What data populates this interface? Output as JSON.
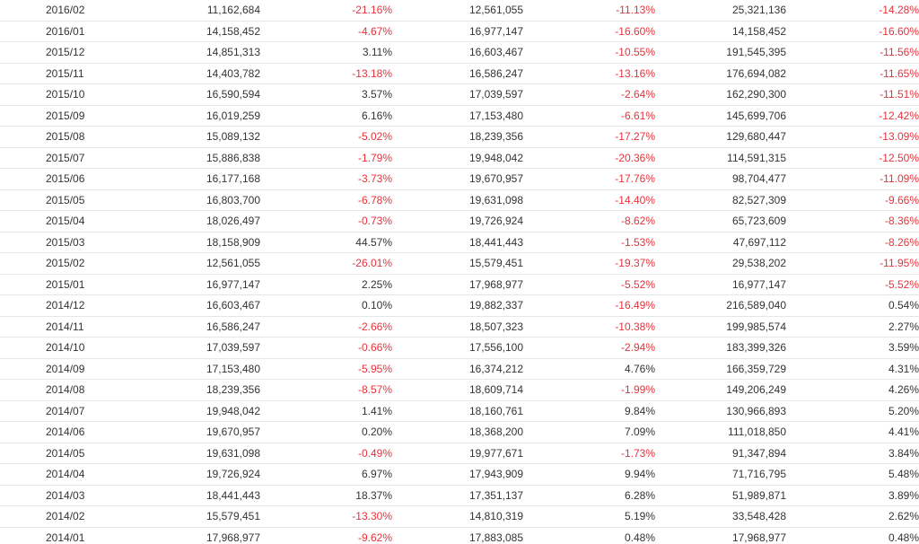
{
  "table": {
    "rows": [
      {
        "month": "2016/02",
        "v1": "11,162,684",
        "p1": "-21.16%",
        "v2": "12,561,055",
        "p2": "-11.13%",
        "v3": "25,321,136",
        "p3": "-14.28%"
      },
      {
        "month": "2016/01",
        "v1": "14,158,452",
        "p1": "-4.67%",
        "v2": "16,977,147",
        "p2": "-16.60%",
        "v3": "14,158,452",
        "p3": "-16.60%"
      },
      {
        "month": "2015/12",
        "v1": "14,851,313",
        "p1": "3.11%",
        "v2": "16,603,467",
        "p2": "-10.55%",
        "v3": "191,545,395",
        "p3": "-11.56%"
      },
      {
        "month": "2015/11",
        "v1": "14,403,782",
        "p1": "-13.18%",
        "v2": "16,586,247",
        "p2": "-13.16%",
        "v3": "176,694,082",
        "p3": "-11.65%"
      },
      {
        "month": "2015/10",
        "v1": "16,590,594",
        "p1": "3.57%",
        "v2": "17,039,597",
        "p2": "-2.64%",
        "v3": "162,290,300",
        "p3": "-11.51%"
      },
      {
        "month": "2015/09",
        "v1": "16,019,259",
        "p1": "6.16%",
        "v2": "17,153,480",
        "p2": "-6.61%",
        "v3": "145,699,706",
        "p3": "-12.42%"
      },
      {
        "month": "2015/08",
        "v1": "15,089,132",
        "p1": "-5.02%",
        "v2": "18,239,356",
        "p2": "-17.27%",
        "v3": "129,680,447",
        "p3": "-13.09%"
      },
      {
        "month": "2015/07",
        "v1": "15,886,838",
        "p1": "-1.79%",
        "v2": "19,948,042",
        "p2": "-20.36%",
        "v3": "114,591,315",
        "p3": "-12.50%"
      },
      {
        "month": "2015/06",
        "v1": "16,177,168",
        "p1": "-3.73%",
        "v2": "19,670,957",
        "p2": "-17.76%",
        "v3": "98,704,477",
        "p3": "-11.09%"
      },
      {
        "month": "2015/05",
        "v1": "16,803,700",
        "p1": "-6.78%",
        "v2": "19,631,098",
        "p2": "-14.40%",
        "v3": "82,527,309",
        "p3": "-9.66%"
      },
      {
        "month": "2015/04",
        "v1": "18,026,497",
        "p1": "-0.73%",
        "v2": "19,726,924",
        "p2": "-8.62%",
        "v3": "65,723,609",
        "p3": "-8.36%"
      },
      {
        "month": "2015/03",
        "v1": "18,158,909",
        "p1": "44.57%",
        "v2": "18,441,443",
        "p2": "-1.53%",
        "v3": "47,697,112",
        "p3": "-8.26%"
      },
      {
        "month": "2015/02",
        "v1": "12,561,055",
        "p1": "-26.01%",
        "v2": "15,579,451",
        "p2": "-19.37%",
        "v3": "29,538,202",
        "p3": "-11.95%"
      },
      {
        "month": "2015/01",
        "v1": "16,977,147",
        "p1": "2.25%",
        "v2": "17,968,977",
        "p2": "-5.52%",
        "v3": "16,977,147",
        "p3": "-5.52%"
      },
      {
        "month": "2014/12",
        "v1": "16,603,467",
        "p1": "0.10%",
        "v2": "19,882,337",
        "p2": "-16.49%",
        "v3": "216,589,040",
        "p3": "0.54%"
      },
      {
        "month": "2014/11",
        "v1": "16,586,247",
        "p1": "-2.66%",
        "v2": "18,507,323",
        "p2": "-10.38%",
        "v3": "199,985,574",
        "p3": "2.27%"
      },
      {
        "month": "2014/10",
        "v1": "17,039,597",
        "p1": "-0.66%",
        "v2": "17,556,100",
        "p2": "-2.94%",
        "v3": "183,399,326",
        "p3": "3.59%"
      },
      {
        "month": "2014/09",
        "v1": "17,153,480",
        "p1": "-5.95%",
        "v2": "16,374,212",
        "p2": "4.76%",
        "v3": "166,359,729",
        "p3": "4.31%"
      },
      {
        "month": "2014/08",
        "v1": "18,239,356",
        "p1": "-8.57%",
        "v2": "18,609,714",
        "p2": "-1.99%",
        "v3": "149,206,249",
        "p3": "4.26%"
      },
      {
        "month": "2014/07",
        "v1": "19,948,042",
        "p1": "1.41%",
        "v2": "18,160,761",
        "p2": "9.84%",
        "v3": "130,966,893",
        "p3": "5.20%"
      },
      {
        "month": "2014/06",
        "v1": "19,670,957",
        "p1": "0.20%",
        "v2": "18,368,200",
        "p2": "7.09%",
        "v3": "111,018,850",
        "p3": "4.41%"
      },
      {
        "month": "2014/05",
        "v1": "19,631,098",
        "p1": "-0.49%",
        "v2": "19,977,671",
        "p2": "-1.73%",
        "v3": "91,347,894",
        "p3": "3.84%"
      },
      {
        "month": "2014/04",
        "v1": "19,726,924",
        "p1": "6.97%",
        "v2": "17,943,909",
        "p2": "9.94%",
        "v3": "71,716,795",
        "p3": "5.48%"
      },
      {
        "month": "2014/03",
        "v1": "18,441,443",
        "p1": "18.37%",
        "v2": "17,351,137",
        "p2": "6.28%",
        "v3": "51,989,871",
        "p3": "3.89%"
      },
      {
        "month": "2014/02",
        "v1": "15,579,451",
        "p1": "-13.30%",
        "v2": "14,810,319",
        "p2": "5.19%",
        "v3": "33,548,428",
        "p3": "2.62%"
      },
      {
        "month": "2014/01",
        "v1": "17,968,977",
        "p1": "-9.62%",
        "v2": "17,883,085",
        "p2": "0.48%",
        "v3": "17,968,977",
        "p3": "0.48%"
      }
    ]
  },
  "colors": {
    "negative": "#e5333b",
    "positive": "#333333",
    "divider": "#e6e6e6"
  }
}
